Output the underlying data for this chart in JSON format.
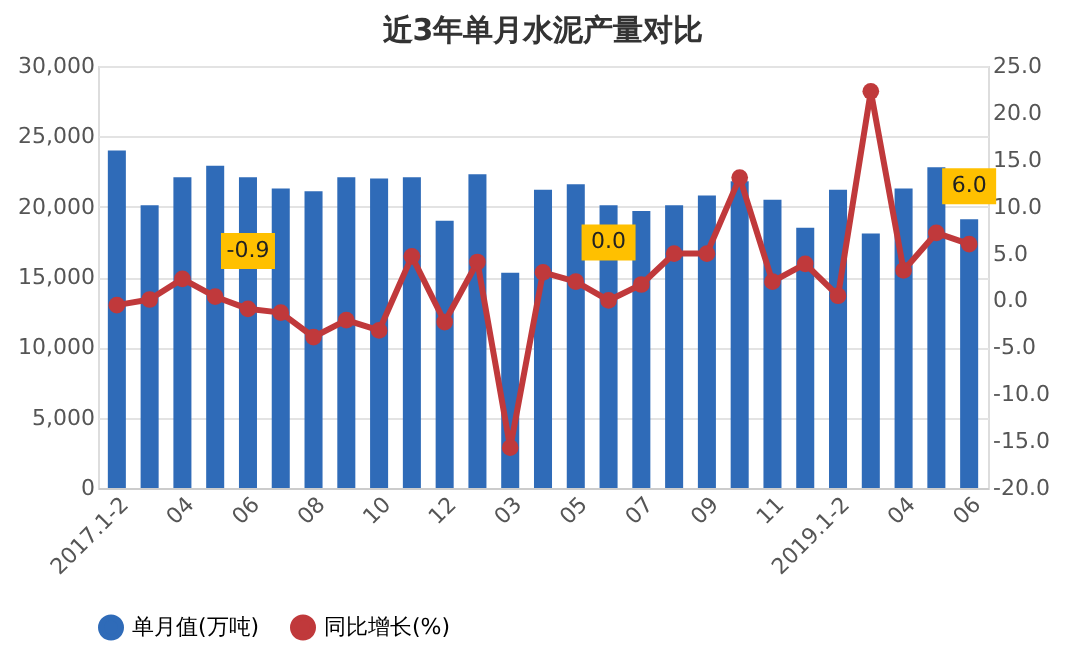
{
  "chart_data": {
    "type": "bar",
    "title": "近3年单月水泥产量对比",
    "categories": [
      "2017.1-2",
      null,
      "04",
      null,
      "06",
      null,
      "08",
      null,
      "10",
      null,
      "12",
      null,
      "03",
      null,
      "05",
      null,
      "07",
      null,
      "09",
      null,
      "11",
      null,
      "2019.1-2",
      null,
      "04",
      null,
      "06"
    ],
    "series": [
      {
        "name": "单月值(万吨)",
        "color": "#2f6bb8",
        "values": [
          24000,
          20100,
          22100,
          22900,
          22100,
          21300,
          21100,
          22100,
          22000,
          22100,
          19000,
          22300,
          15300,
          21200,
          21600,
          20100,
          19700,
          20100,
          20800,
          21800,
          20500,
          18500,
          21200,
          18100,
          21300,
          22800,
          19100
        ]
      },
      {
        "name": "同比增长(%)",
        "type": "line",
        "axis": "y2",
        "color": "#c0393b",
        "marker": "circle",
        "values": [
          -0.5,
          0.1,
          2.3,
          0.4,
          -0.9,
          -1.3,
          -3.9,
          -2.1,
          -3.2,
          4.7,
          -2.3,
          4.1,
          -15.7,
          3.0,
          2.0,
          0.0,
          1.7,
          5.0,
          5.0,
          13.1,
          2.0,
          3.9,
          0.5,
          22.3,
          3.2,
          7.2,
          6.0
        ],
        "value_labels": [
          null,
          null,
          null,
          null,
          "-0.9",
          null,
          null,
          null,
          null,
          null,
          null,
          null,
          null,
          null,
          null,
          "0.0",
          null,
          null,
          null,
          null,
          null,
          null,
          null,
          null,
          null,
          null,
          "6.0"
        ]
      }
    ],
    "ylim": [
      0,
      30000
    ],
    "yticks": [
      0,
      {
        "value": 5000,
        "label": "5,000"
      },
      {
        "value": 10000,
        "label": "10,000"
      },
      {
        "value": 15000,
        "label": "15,000"
      },
      {
        "value": 20000,
        "label": "20,000"
      },
      {
        "value": 25000,
        "label": "25,000"
      },
      {
        "value": 30000,
        "label": "30,000"
      }
    ],
    "y2lim": [
      -20,
      25
    ],
    "y2ticks": [
      {
        "value": -20,
        "label": "-20.0"
      },
      {
        "value": -15,
        "label": "-15.0"
      },
      {
        "value": -10,
        "label": "-10.0"
      },
      {
        "value": -5,
        "label": "-5.0"
      },
      {
        "value": 0,
        "label": "0.0"
      },
      {
        "value": 5,
        "label": "5.0"
      },
      {
        "value": 10,
        "label": "10.0"
      },
      {
        "value": 15,
        "label": "15.0"
      },
      {
        "value": 20,
        "label": "20.0"
      },
      {
        "value": 25,
        "label": "25.0"
      }
    ],
    "grid": "y",
    "legend": "bottom"
  }
}
